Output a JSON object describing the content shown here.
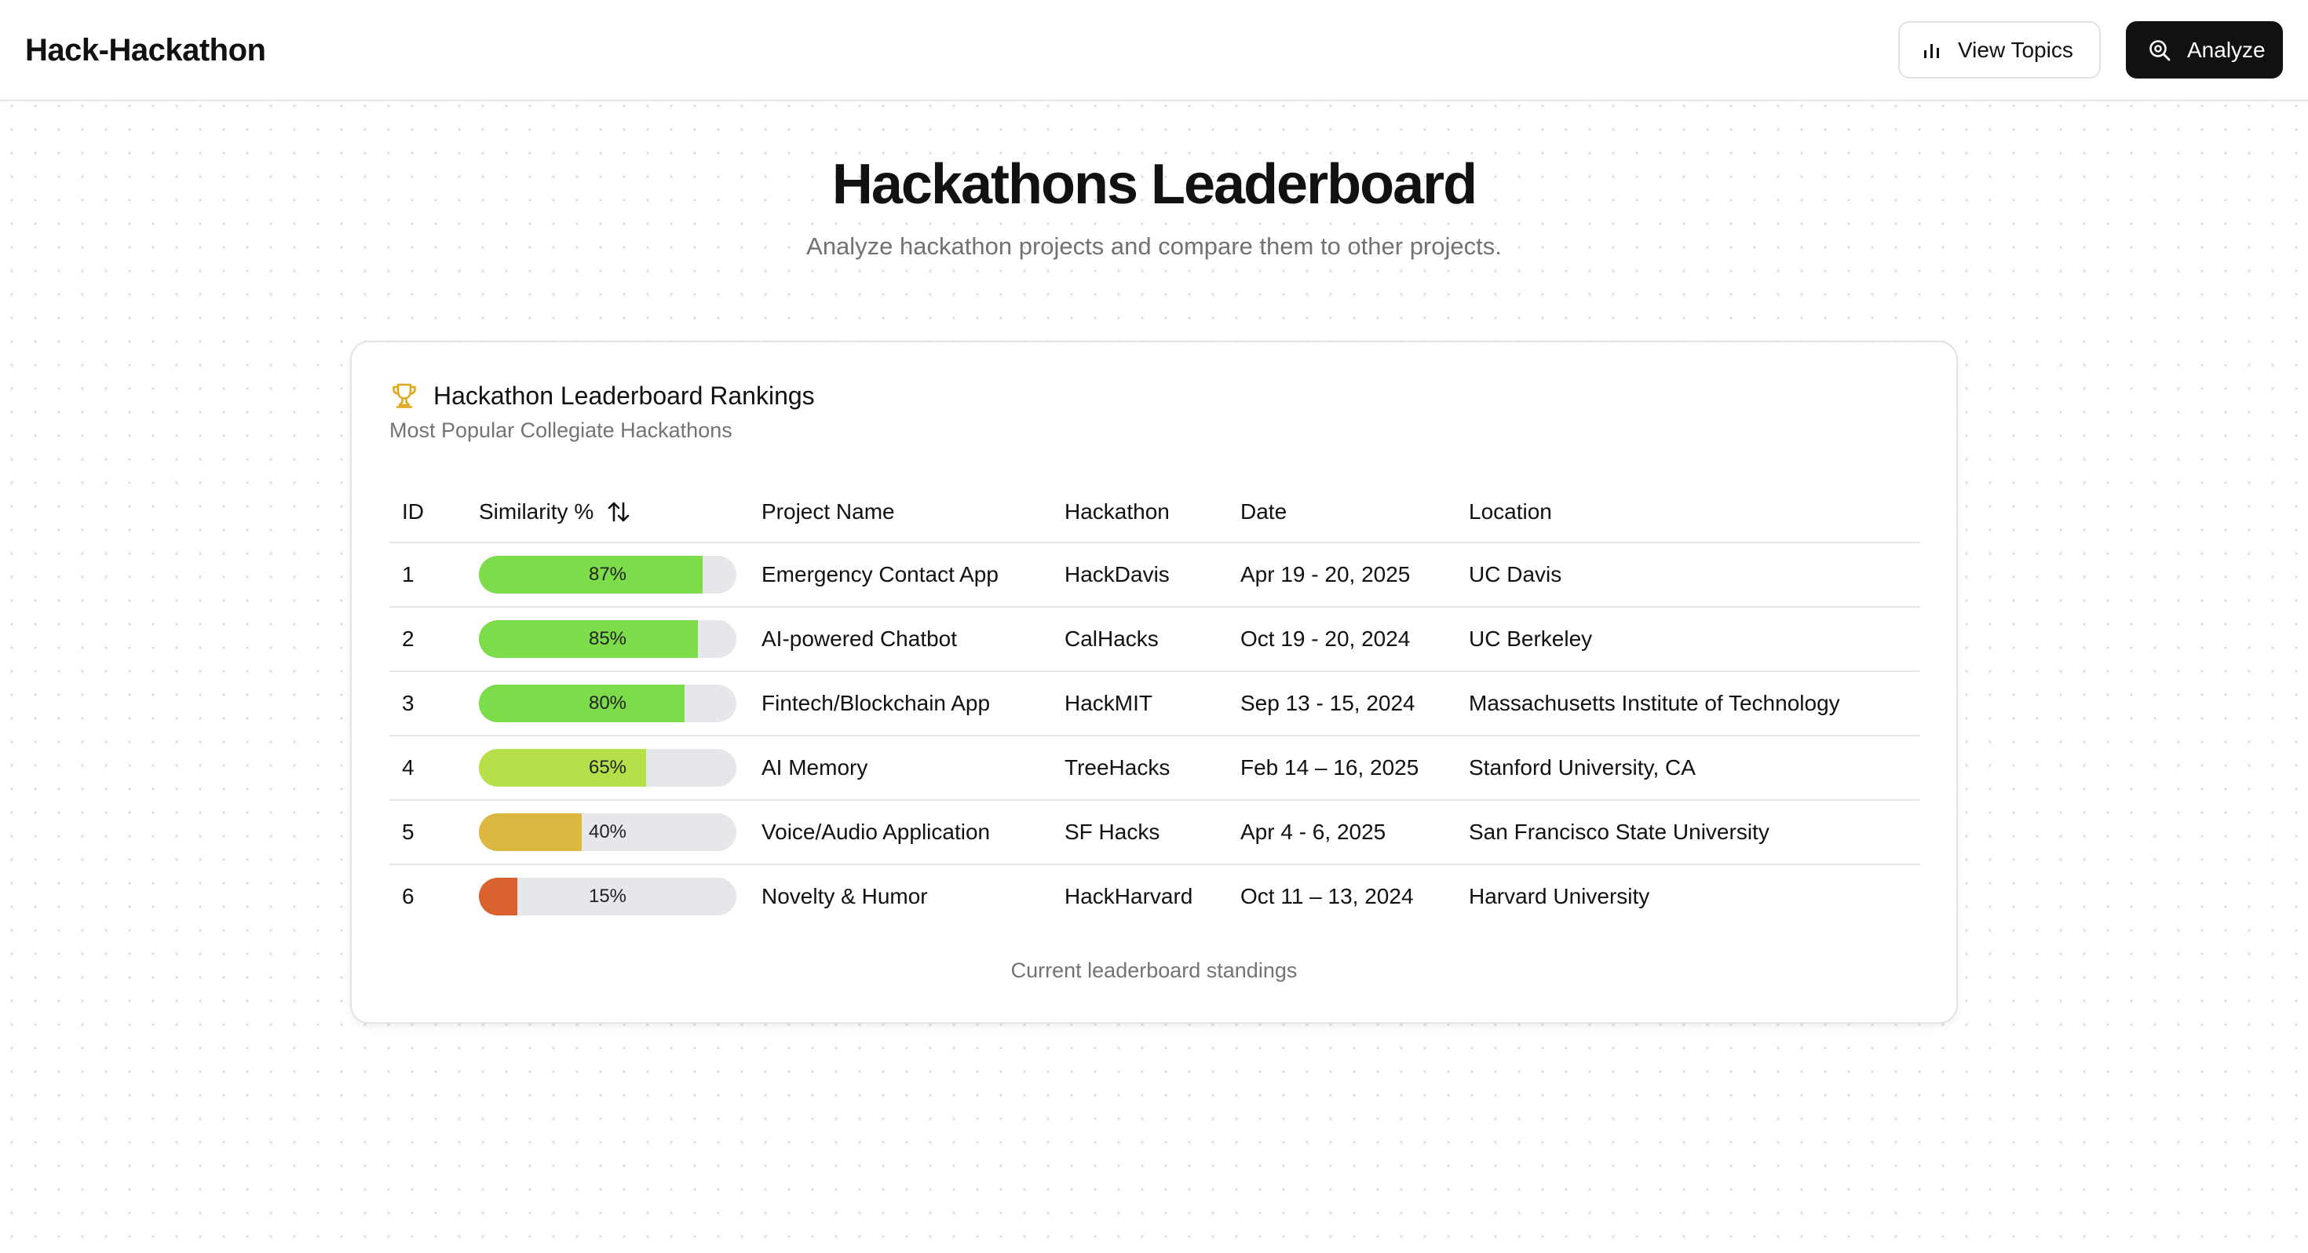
{
  "header": {
    "brand": "Hack-Hackathon",
    "view_topics_label": "View Topics",
    "view_topics_icon": "bar-chart-icon",
    "analyze_label": "Analyze",
    "analyze_icon": "search-analyze-icon"
  },
  "hero": {
    "title": "Hackathons Leaderboard",
    "subtitle": "Analyze hackathon projects and compare them to other projects."
  },
  "card": {
    "icon": "trophy-icon",
    "icon_color": "#eab308",
    "title": "Hackathon Leaderboard Rankings",
    "description": "Most Popular Collegiate Hackathons",
    "footnote": "Current leaderboard standings"
  },
  "table": {
    "columns": {
      "id": "ID",
      "similarity": "Similarity %",
      "project": "Project Name",
      "hackathon": "Hackathon",
      "date": "Date",
      "location": "Location"
    },
    "sort_icon": "sort-arrows-icon",
    "rows": [
      {
        "id": "1",
        "similarity": 87,
        "similarity_label": "87%",
        "bar_color": "#7ddc4a",
        "project": "Emergency Contact App",
        "hackathon": "HackDavis",
        "date": "Apr 19 - 20, 2025",
        "location": "UC Davis"
      },
      {
        "id": "2",
        "similarity": 85,
        "similarity_label": "85%",
        "bar_color": "#7ddc4a",
        "project": "AI-powered Chatbot",
        "hackathon": "CalHacks",
        "date": "Oct 19 - 20, 2024",
        "location": "UC Berkeley"
      },
      {
        "id": "3",
        "similarity": 80,
        "similarity_label": "80%",
        "bar_color": "#7ddc4a",
        "project": "Fintech/Blockchain App",
        "hackathon": "HackMIT",
        "date": "Sep 13 - 15, 2024",
        "location": "Massachusetts Institute of Technology"
      },
      {
        "id": "4",
        "similarity": 65,
        "similarity_label": "65%",
        "bar_color": "#b5e04a",
        "project": "AI Memory",
        "hackathon": "TreeHacks",
        "date": "Feb 14 – 16, 2025",
        "location": "Stanford University, CA"
      },
      {
        "id": "5",
        "similarity": 40,
        "similarity_label": "40%",
        "bar_color": "#dcb840",
        "project": "Voice/Audio Application",
        "hackathon": "SF Hacks",
        "date": "Apr 4 - 6, 2025",
        "location": "San Francisco State University"
      },
      {
        "id": "6",
        "similarity": 15,
        "similarity_label": "15%",
        "bar_color": "#d9622f",
        "project": "Novelty & Humor",
        "hackathon": "HackHarvard",
        "date": "Oct 11 – 13, 2024",
        "location": "Harvard University"
      }
    ]
  }
}
